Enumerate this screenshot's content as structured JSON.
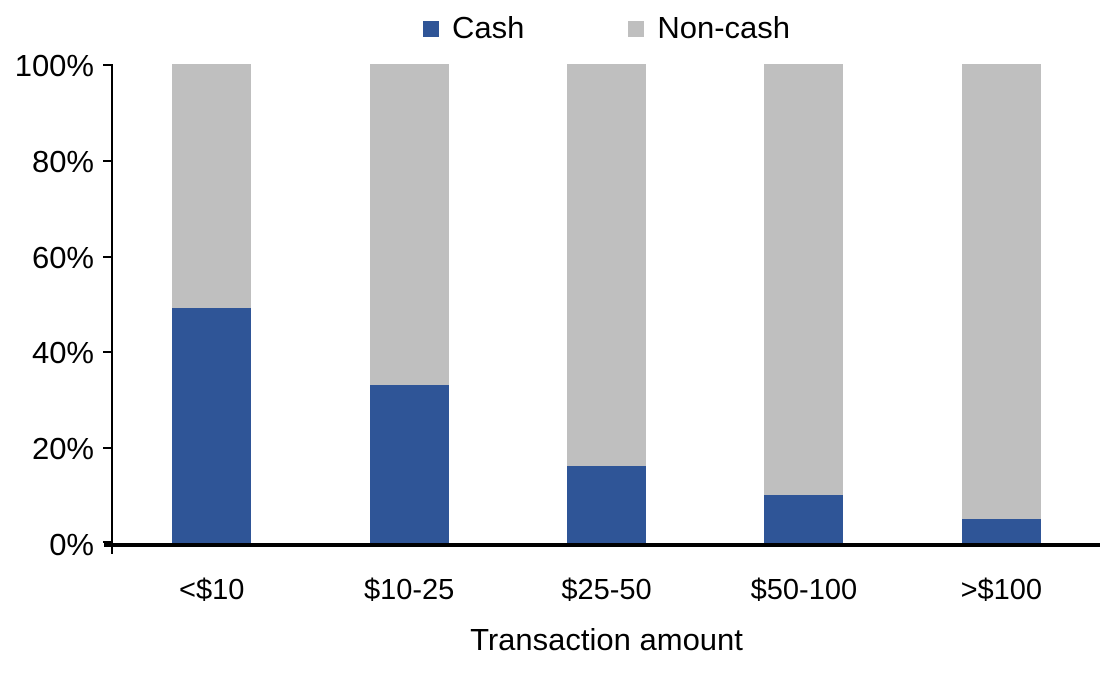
{
  "chart_data": {
    "type": "bar",
    "stacked": true,
    "orientation": "vertical",
    "title": "",
    "xlabel": "Transaction amount",
    "ylabel": "",
    "ylim": [
      0,
      100
    ],
    "y_tick_labels": [
      "0%",
      "20%",
      "40%",
      "60%",
      "80%",
      "100%"
    ],
    "grid": false,
    "legend_position": "top-center",
    "categories": [
      "<$10",
      "$10-25",
      "$25-50",
      "$50-100",
      ">$100"
    ],
    "series": [
      {
        "name": "Cash",
        "color": "#2F5597",
        "values": [
          49,
          33,
          16,
          10,
          5
        ]
      },
      {
        "name": "Non-cash",
        "color": "#BFBFBF",
        "values": [
          51,
          67,
          84,
          90,
          95
        ]
      }
    ]
  },
  "legend": {
    "items": [
      {
        "label": "Cash",
        "color": "#2F5597"
      },
      {
        "label": "Non-cash",
        "color": "#BFBFBF"
      }
    ]
  },
  "colors": {
    "axis": "#000000",
    "background": "#FFFFFF",
    "text": "#000000"
  }
}
